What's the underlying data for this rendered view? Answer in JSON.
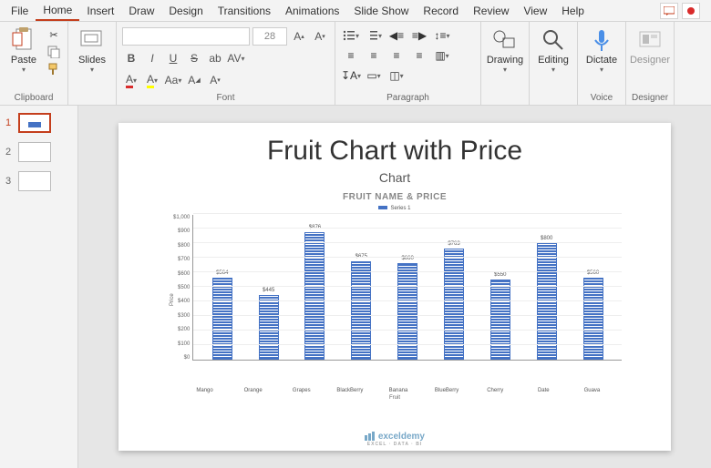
{
  "menu": {
    "items": [
      "File",
      "Home",
      "Insert",
      "Draw",
      "Design",
      "Transitions",
      "Animations",
      "Slide Show",
      "Record",
      "Review",
      "View",
      "Help"
    ],
    "active_index": 1
  },
  "ribbon": {
    "clipboard": {
      "paste": "Paste",
      "label": "Clipboard"
    },
    "slides": {
      "btn": "Slides",
      "label": ""
    },
    "font": {
      "size_placeholder": "28",
      "label": "Font"
    },
    "paragraph": {
      "label": "Paragraph"
    },
    "drawing": {
      "btn": "Drawing",
      "label": ""
    },
    "editing": {
      "btn": "Editing",
      "label": ""
    },
    "voice": {
      "btn": "Dictate",
      "label": "Voice"
    },
    "designer": {
      "btn": "Designer",
      "label": "Designer"
    }
  },
  "thumbs": {
    "selected": 1,
    "items": [
      "1",
      "2",
      "3"
    ]
  },
  "slide": {
    "title": "Fruit Chart with Price",
    "subtitle": "Chart",
    "chart_title": "FRUIT NAME & PRICE",
    "legend": "Series 1",
    "y_label": "Price",
    "x_label": "Fruit",
    "watermark": "exceldemy",
    "watermark_sub": "EXCEL · DATA · BI"
  },
  "chart": {
    "type": "bar",
    "bar_color": "#4472c4",
    "background_color": "#ffffff",
    "grid_color": "#eeeeee",
    "ylim": [
      0,
      1000
    ],
    "ytick_step": 100,
    "yticks": [
      "$1,000",
      "$900",
      "$800",
      "$700",
      "$600",
      "$500",
      "$400",
      "$300",
      "$200",
      "$100",
      "$0"
    ],
    "categories": [
      "Mango",
      "Orange",
      "Grapes",
      "BlackBerry",
      "Banana",
      "BlueBerry",
      "Cherry",
      "Date",
      "Guava"
    ],
    "values": [
      564,
      445,
      876,
      675,
      660,
      763,
      550,
      800,
      560
    ],
    "value_labels": [
      "$564",
      "$445",
      "$876",
      "$675",
      "$660",
      "$763",
      "$550",
      "$800",
      "$560"
    ]
  }
}
